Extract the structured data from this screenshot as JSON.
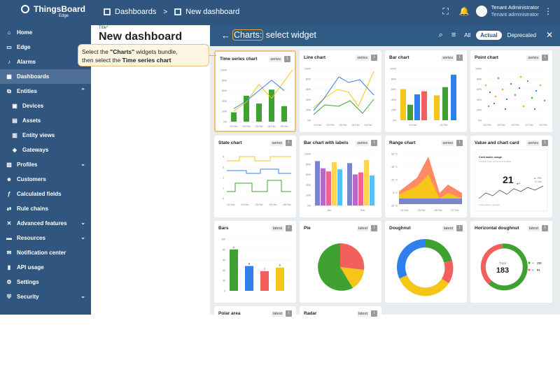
{
  "app": {
    "name": "ThingsBoard",
    "edition": "Edge"
  },
  "breadcrumb": {
    "root": "Dashboards",
    "current": "New dashboard"
  },
  "user": {
    "name": "Tenant Administrator",
    "role": "Tenant administrator"
  },
  "sidebar": {
    "items": [
      {
        "label": "Home",
        "icon": "home-icon"
      },
      {
        "label": "Edge",
        "icon": "edge-icon"
      },
      {
        "label": "Alarms",
        "icon": "alarm-icon"
      },
      {
        "label": "Dashboards",
        "icon": "dashboard-icon",
        "active": true
      },
      {
        "label": "Entities",
        "icon": "entities-icon",
        "expandable": true
      },
      {
        "label": "Devices",
        "icon": "devices-icon",
        "sub": true
      },
      {
        "label": "Assets",
        "icon": "assets-icon",
        "sub": true
      },
      {
        "label": "Entity views",
        "icon": "entity-views-icon",
        "sub": true
      },
      {
        "label": "Gateways",
        "icon": "gateways-icon",
        "sub": true
      },
      {
        "label": "Profiles",
        "icon": "profiles-icon",
        "expandable": true
      },
      {
        "label": "Customers",
        "icon": "customers-icon"
      },
      {
        "label": "Calculated fields",
        "icon": "calculated-fields-icon"
      },
      {
        "label": "Rule chains",
        "icon": "rule-chains-icon"
      },
      {
        "label": "Advanced features",
        "icon": "advanced-features-icon",
        "expandable": true
      },
      {
        "label": "Resources",
        "icon": "resources-icon",
        "expandable": true
      },
      {
        "label": "Notification center",
        "icon": "notification-center-icon"
      },
      {
        "label": "API usage",
        "icon": "api-usage-icon"
      },
      {
        "label": "Settings",
        "icon": "settings-icon"
      },
      {
        "label": "Security",
        "icon": "security-icon",
        "expandable": true
      }
    ]
  },
  "dashboard": {
    "title_label": "Title*",
    "title_value": "New dashboard"
  },
  "tooltip": {
    "line1_pre": "Select the ",
    "line1_bold": "\"Charts\"",
    "line1_post": " widgets bundle,",
    "line2_pre": "then select the ",
    "line2_bold": "Time series chart"
  },
  "drawer": {
    "bundle": "Charts:",
    "title": " select widget",
    "filters": [
      "All",
      "Actual",
      "Deprecated"
    ],
    "active_filter": "Actual"
  },
  "widgets": [
    {
      "title": "Time series chart",
      "tag": "series",
      "selected": true,
      "kind": "timeseries"
    },
    {
      "title": "Line chart",
      "tag": "series",
      "kind": "line"
    },
    {
      "title": "Bar chart",
      "tag": "series",
      "kind": "bar"
    },
    {
      "title": "Point chart",
      "tag": "series",
      "kind": "point"
    },
    {
      "title": "State chart",
      "tag": "series",
      "kind": "state"
    },
    {
      "title": "Bar chart with labels",
      "tag": "series",
      "kind": "barlabels"
    },
    {
      "title": "Range chart",
      "tag": "series",
      "kind": "range"
    },
    {
      "title": "Value and chart card",
      "tag": "series",
      "kind": "valuecard"
    },
    {
      "title": "Bars",
      "tag": "latest",
      "kind": "bars"
    },
    {
      "title": "Pie",
      "tag": "latest",
      "kind": "pie"
    },
    {
      "title": "Doughnut",
      "tag": "latest",
      "kind": "doughnut"
    },
    {
      "title": "Horizontal doughnut",
      "tag": "latest",
      "kind": "hdoughnut"
    },
    {
      "title": "Polar area",
      "tag": "latest",
      "kind": "none"
    },
    {
      "title": "Radar",
      "tag": "latest",
      "kind": "none"
    }
  ],
  "previews": {
    "timeseries": {
      "y_ticks": [
        "100%",
        "80%",
        "60%",
        "40%",
        "20%",
        "0%"
      ],
      "x_ticks": [
        "01 Feb",
        "02 Feb",
        "03 Feb",
        "04 Feb",
        "05 Feb"
      ],
      "bars": [
        18,
        50,
        35,
        62,
        30
      ],
      "line1": [
        20,
        38,
        72,
        45,
        100
      ],
      "line2": [
        25,
        40,
        60,
        80,
        60
      ]
    },
    "line": {
      "y_ticks": [
        "100%",
        "80%",
        "60%",
        "40%",
        "20%",
        "0%"
      ],
      "x_ticks": [
        "01 Feb",
        "02 Feb",
        "03 Feb",
        "04 Feb",
        "05 Feb"
      ]
    },
    "bar": {
      "y_ticks": [
        "100%",
        "80%",
        "60%",
        "40%",
        "20%",
        "0%"
      ],
      "x_ticks": [
        "01 Feb",
        "02 Feb"
      ]
    },
    "point": {
      "y_ticks": [
        "100%",
        "80%",
        "60%",
        "40%",
        "20%",
        "0%"
      ],
      "x_ticks": [
        "01 Feb",
        "03 Feb",
        "05 Feb",
        "07 Feb",
        "09 Feb"
      ]
    },
    "state": {
      "y_ticks": [
        "4",
        "3",
        "2",
        "1",
        "0"
      ],
      "x_ticks": [
        "01 Feb",
        "02 Feb",
        "03 Feb",
        "04 Feb",
        "05 Feb"
      ]
    },
    "barlabels": {
      "y_ticks": [
        "100%",
        "80%",
        "60%",
        "40%",
        "20%",
        "0%"
      ],
      "x_ticks": [
        "Jan",
        "Feb"
      ]
    },
    "range": {
      "y_ticks": [
        "60 °C",
        "40 °C",
        "20 °C",
        "0 °C",
        "-20 °C"
      ],
      "x_ticks": [
        "01 Feb",
        "03 Feb",
        "05 Feb",
        "07 Feb"
      ]
    },
    "valuecard": {
      "name": "Cold water usage",
      "subtitle": "Counter meter on the third building",
      "value": "21",
      "unit": "m³",
      "change": "▲ 78%",
      "change2": "+2.4m³",
      "footer": "Last update 5 min ago"
    },
    "bars": {
      "y_ticks": [
        "100",
        "80",
        "60",
        "40",
        "20",
        "0"
      ],
      "labels": [
        "A",
        "B",
        "C",
        "D"
      ],
      "values": [
        80,
        48,
        38,
        45
      ]
    },
    "hdoughnut": {
      "total_label": "Total",
      "total_value": "183",
      "a_label": "A",
      "a_value": "132",
      "b_label": "B",
      "b_value": "51"
    }
  },
  "colors": {
    "primary": "#305680",
    "drawer": "#2f5b85",
    "green": "#3fa132",
    "yellow": "#f5c518",
    "blue": "#2f80ed",
    "red": "#f25f5c",
    "highlight": "#e8a630"
  }
}
